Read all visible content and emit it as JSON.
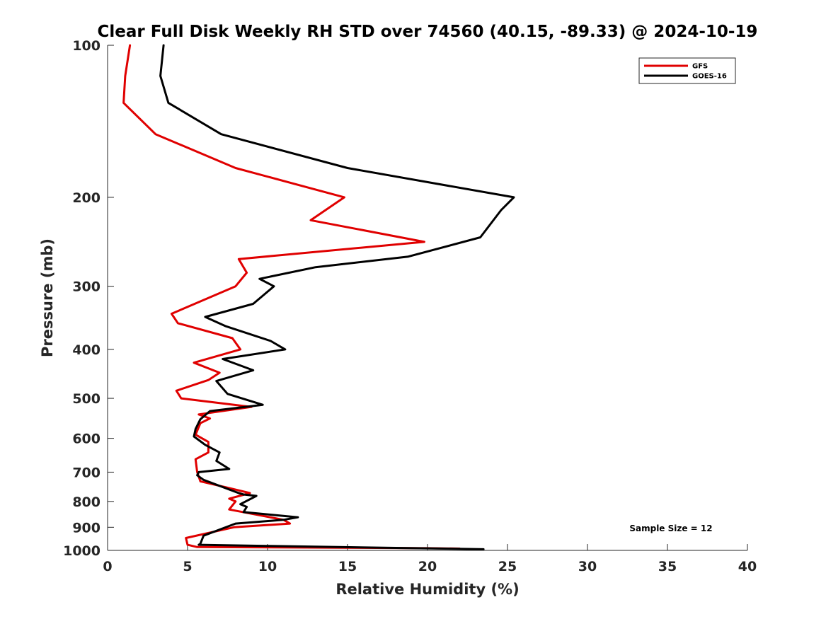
{
  "chart_data": {
    "type": "line",
    "title": "Clear Full Disk Weekly RH STD over 74560 (40.15, -89.33) @ 2024-10-19",
    "xlabel": "Relative Humidity (%)",
    "ylabel": "Pressure (mb)",
    "xlim": [
      0,
      40
    ],
    "ylim": [
      100,
      1000
    ],
    "yscale": "log",
    "y_reversed": true,
    "xticks": [
      0,
      5,
      10,
      15,
      20,
      25,
      30,
      35,
      40
    ],
    "yticks": [
      100,
      200,
      300,
      400,
      500,
      600,
      700,
      800,
      900,
      1000
    ],
    "legend_position": "top-right",
    "annotation": "Sample Size = 12",
    "series": [
      {
        "name": "GFS",
        "color": "#e00000",
        "x": [
          1.4,
          1.1,
          1.0,
          3.0,
          8.0,
          14.8,
          12.7,
          19.8,
          8.2,
          8.7,
          8.0,
          4.0,
          4.4,
          7.8,
          8.3,
          5.4,
          7.0,
          6.3,
          4.3,
          4.6,
          9.0,
          5.7,
          6.4,
          5.8,
          5.5,
          6.3,
          6.3,
          5.5,
          5.6,
          5.8,
          7.4,
          8.9,
          7.6,
          8.0,
          7.6,
          11.0,
          11.4,
          7.9,
          4.9,
          5.0,
          5.6,
          20.0,
          22.0
        ],
        "y": [
          100,
          115,
          130,
          150,
          175,
          200,
          222,
          245,
          265,
          282,
          300,
          340,
          355,
          380,
          400,
          425,
          445,
          460,
          483,
          500,
          520,
          538,
          548,
          560,
          590,
          610,
          640,
          660,
          700,
          730,
          750,
          770,
          790,
          800,
          830,
          870,
          885,
          900,
          945,
          975,
          985,
          990,
          992
        ]
      },
      {
        "name": "GOES-16",
        "color": "#000000",
        "x": [
          3.5,
          3.3,
          3.8,
          7.1,
          15.0,
          25.4,
          24.6,
          23.3,
          18.8,
          13.0,
          9.5,
          10.4,
          9.1,
          6.1,
          7.4,
          10.2,
          11.1,
          7.2,
          9.1,
          6.8,
          7.5,
          9.7,
          6.4,
          5.8,
          5.5,
          5.4,
          6.1,
          7.0,
          6.8,
          7.6,
          5.7,
          5.6,
          6.0,
          8.2,
          8.5,
          9.3,
          8.3,
          8.7,
          8.5,
          11.9,
          11.0,
          8.0,
          6.0,
          5.8,
          5.7,
          10.0,
          23.5
        ],
        "y": [
          100,
          115,
          130,
          150,
          175,
          200,
          212,
          240,
          262,
          275,
          290,
          300,
          325,
          345,
          360,
          385,
          400,
          418,
          440,
          462,
          490,
          515,
          530,
          550,
          575,
          595,
          618,
          640,
          665,
          690,
          700,
          710,
          725,
          770,
          775,
          780,
          810,
          820,
          840,
          860,
          870,
          885,
          935,
          970,
          975,
          980,
          995
        ]
      }
    ]
  }
}
